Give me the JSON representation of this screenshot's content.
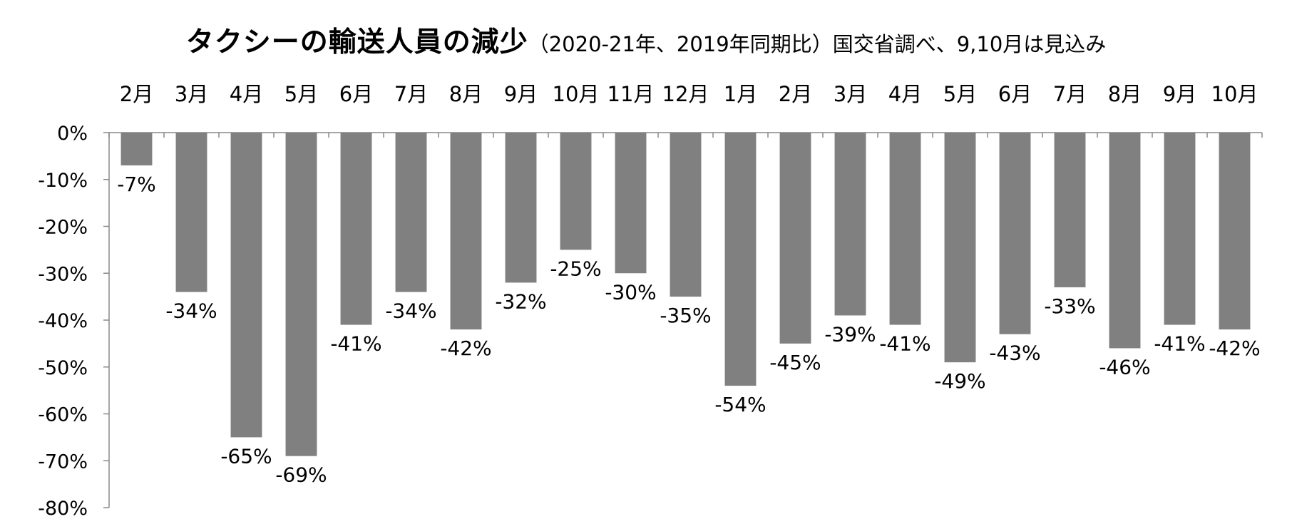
{
  "chart_data": {
    "type": "bar",
    "title": "タクシーの輸送人員の減少",
    "subtitle": "（2020-21年、2019年同期比）国交省調べ、9,10月は見込み",
    "categories": [
      "2月",
      "3月",
      "4月",
      "5月",
      "6月",
      "7月",
      "8月",
      "9月",
      "10月",
      "11月",
      "12月",
      "1月",
      "2月",
      "3月",
      "4月",
      "5月",
      "6月",
      "7月",
      "8月",
      "9月",
      "10月"
    ],
    "series": [
      {
        "values": [
          -7,
          -34,
          -65,
          -69,
          -41,
          -34,
          -42,
          -32,
          -25,
          -30,
          -35,
          -54,
          -45,
          -39,
          -41,
          -49,
          -43,
          -33,
          -46,
          -41,
          -42
        ]
      }
    ],
    "data_labels": [
      "-7%",
      "-34%",
      "-65%",
      "-69%",
      "-41%",
      "-34%",
      "-42%",
      "-32%",
      "-25%",
      "-30%",
      "-35%",
      "-54%",
      "-45%",
      "-39%",
      "-41%",
      "-49%",
      "-43%",
      "-33%",
      "-46%",
      "-41%",
      "-42%"
    ],
    "y_ticks": [
      0,
      -10,
      -20,
      -30,
      -40,
      -50,
      -60,
      -70,
      -80
    ],
    "y_tick_labels": [
      "0%",
      "-10%",
      "-20%",
      "-30%",
      "-40%",
      "-50%",
      "-60%",
      "-70%",
      "-80%"
    ],
    "ylim": [
      -80,
      0
    ],
    "xlabel": "",
    "ylabel": "",
    "grid": false,
    "category_axis_position": "top",
    "bar_color": "#808080",
    "axis_color": "#888888"
  }
}
